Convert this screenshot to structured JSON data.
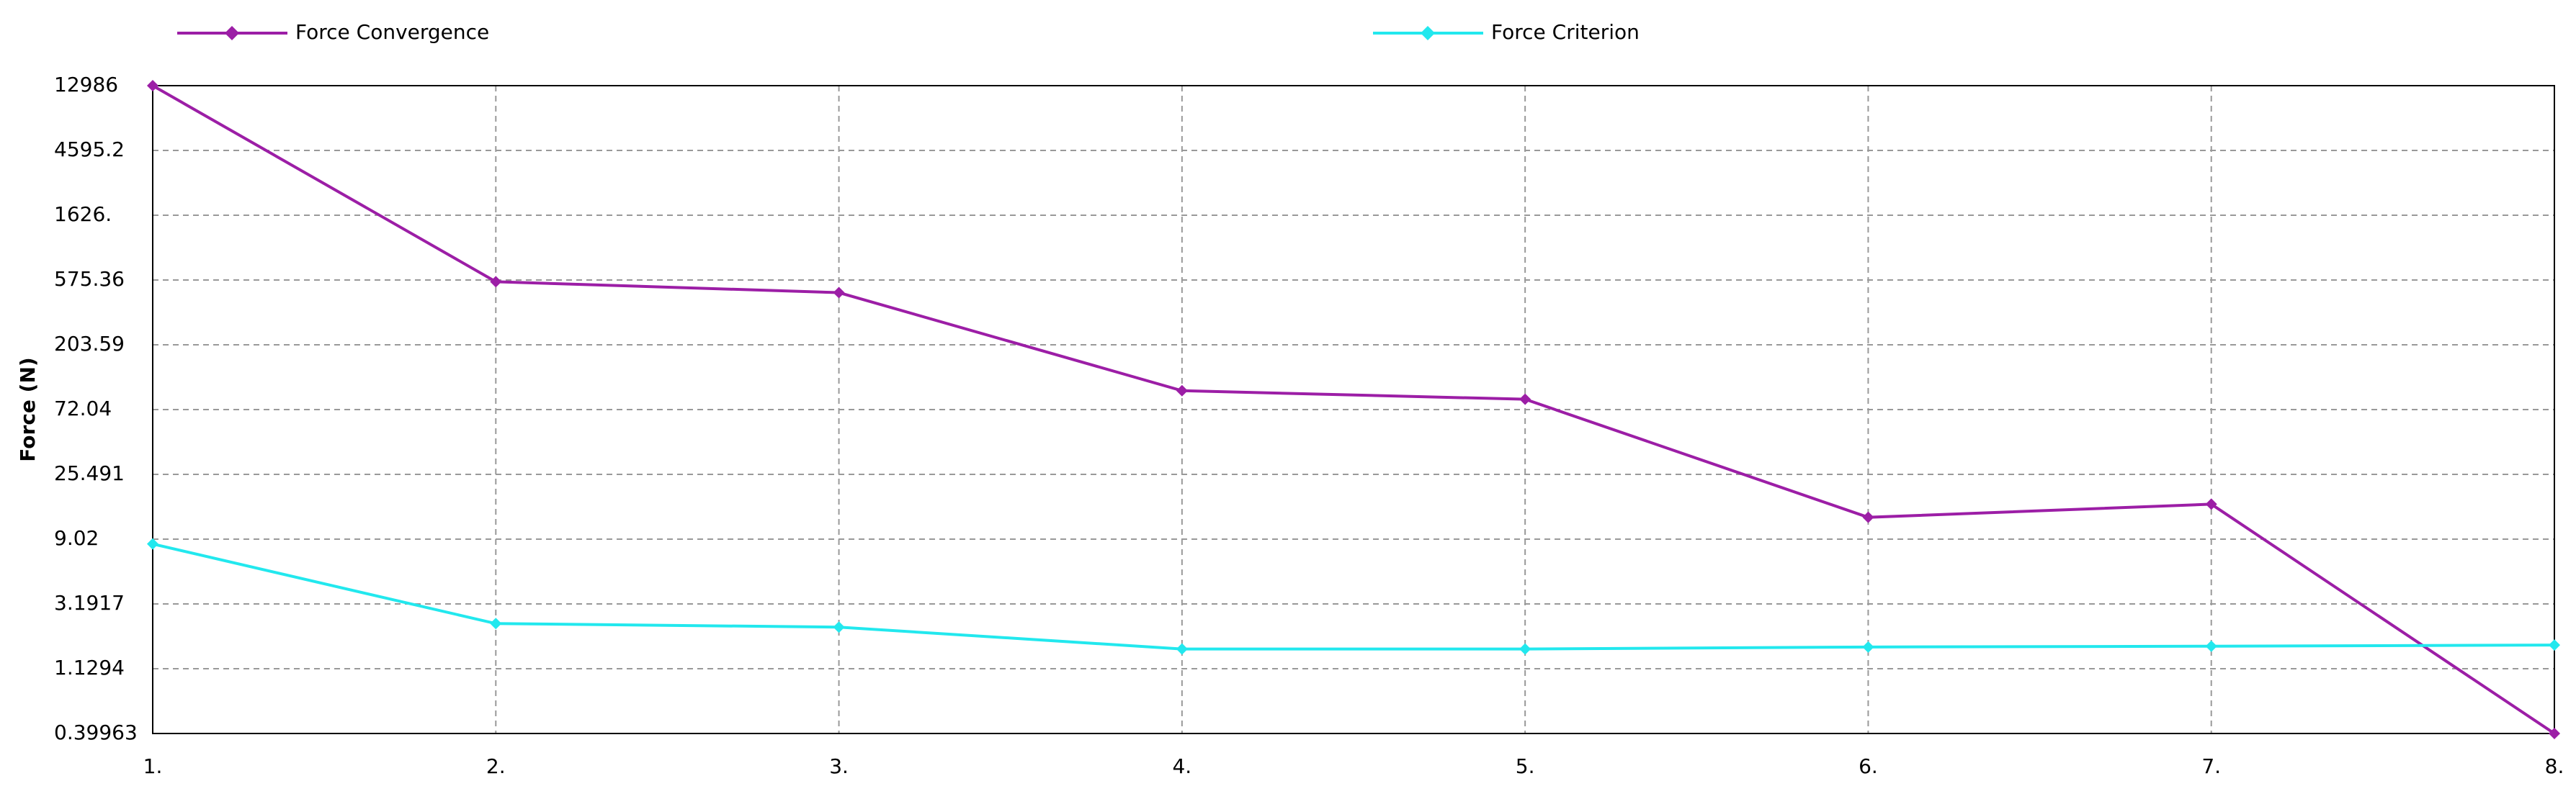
{
  "chart_data": {
    "type": "line",
    "y_label": "Force (N)",
    "log_y": true,
    "grid": true,
    "x": [
      1,
      2,
      3,
      4,
      5,
      6,
      7,
      8
    ],
    "xlim": [
      1,
      8
    ],
    "xticks": [
      {
        "value": 1,
        "label": "1."
      },
      {
        "value": 2,
        "label": "2."
      },
      {
        "value": 3,
        "label": "3."
      },
      {
        "value": 4,
        "label": "4."
      },
      {
        "value": 5,
        "label": "5."
      },
      {
        "value": 6,
        "label": "6."
      },
      {
        "value": 7,
        "label": "7."
      },
      {
        "value": 8,
        "label": "8."
      }
    ],
    "ylim": [
      0.39963,
      12986
    ],
    "yticks": [
      0.39963,
      1.1294,
      3.1917,
      9.02,
      25.491,
      72.04,
      203.59,
      575.36,
      {
        "value": 1626,
        "label": "1626."
      },
      4595.2,
      12986
    ],
    "series": [
      {
        "name": "Force Convergence",
        "color": "#9c1ea6",
        "values": [
          12986,
          560,
          470,
          97.5,
          85,
          12.8,
          15.8,
          0.39963
        ]
      },
      {
        "name": "Force Criterion",
        "color": "#22e8ee",
        "values": [
          8.35,
          2.33,
          2.2,
          1.55,
          1.55,
          1.6,
          1.62,
          1.65
        ]
      }
    ]
  }
}
